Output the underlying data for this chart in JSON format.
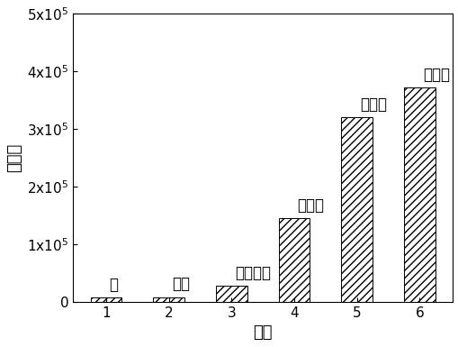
{
  "categories": [
    1,
    2,
    3,
    4,
    5,
    6
  ],
  "values": [
    7000,
    8000,
    28000,
    145000,
    320000,
    372000
  ],
  "bar_labels": [
    "无",
    "吵咀",
    "二正丁胺",
    "二甲胺",
    "乙二胺",
    "异丁胺"
  ],
  "xlabel": "胺类",
  "ylabel": "峦面积",
  "ylim": [
    0,
    500000
  ],
  "yticks": [
    0,
    100000,
    200000,
    300000,
    400000,
    500000
  ],
  "ytick_labels": [
    "0",
    "1x10$^5$",
    "2x10$^5$",
    "3x10$^5$",
    "4x10$^5$",
    "5x10$^5$"
  ],
  "hatch": "////",
  "bar_width": 0.5,
  "figsize": [
    5.1,
    3.85
  ],
  "dpi": 100,
  "label_fontsize": 13,
  "tick_fontsize": 11,
  "bar_label_fontsize": 12
}
